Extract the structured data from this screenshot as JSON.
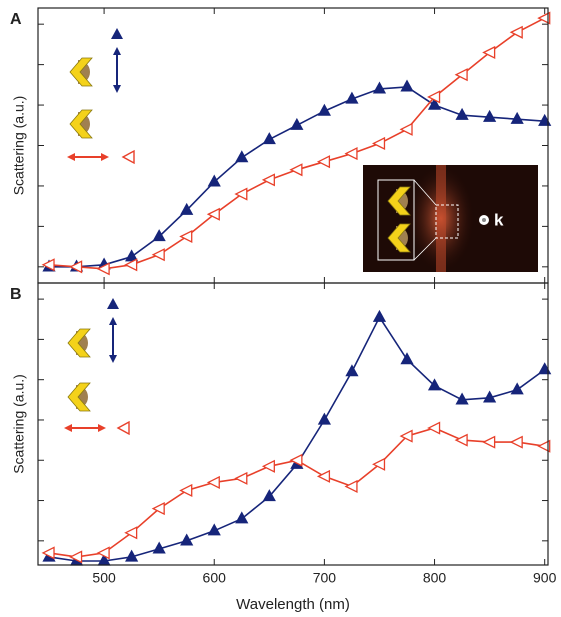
{
  "chart_data": [
    {
      "type": "line",
      "label": "A",
      "ylabel": "Scattering (a.u.)",
      "inset_label": "k",
      "x": [
        450,
        475,
        500,
        525,
        550,
        575,
        600,
        625,
        650,
        675,
        700,
        725,
        750,
        775,
        800,
        825,
        850,
        875,
        900
      ],
      "xlim": [
        440,
        903
      ],
      "xticks": [
        500,
        600,
        700,
        800,
        900
      ],
      "ylim": [
        -0.4,
        6.4
      ],
      "yticks": [
        0,
        1,
        2,
        3,
        4,
        5,
        6
      ],
      "series": [
        {
          "color": "#16257a",
          "marker": "triangle-up",
          "filled": true,
          "values": [
            0.0,
            0.0,
            0.05,
            0.25,
            0.75,
            1.4,
            2.1,
            2.7,
            3.15,
            3.5,
            3.85,
            4.15,
            4.4,
            4.45,
            4.0,
            3.75,
            3.7,
            3.65,
            3.6
          ]
        },
        {
          "color": "#e8402a",
          "marker": "triangle-left",
          "filled": false,
          "values": [
            0.05,
            0.0,
            -0.05,
            0.05,
            0.3,
            0.75,
            1.3,
            1.8,
            2.15,
            2.4,
            2.6,
            2.8,
            3.05,
            3.4,
            4.2,
            4.75,
            5.3,
            5.8,
            6.15
          ]
        }
      ]
    },
    {
      "type": "line",
      "label": "B",
      "ylabel": "Scattering (a.u.)",
      "xlabel": "Wavelength (nm)",
      "x": [
        450,
        475,
        500,
        525,
        550,
        575,
        600,
        625,
        650,
        675,
        700,
        725,
        750,
        775,
        800,
        825,
        850,
        875,
        900
      ],
      "xlim": [
        440,
        903
      ],
      "xticks": [
        500,
        600,
        700,
        800,
        900
      ],
      "ylim": [
        -0.6,
        6.4
      ],
      "yticks": [
        0,
        1,
        2,
        3,
        4,
        5,
        6
      ],
      "series": [
        {
          "color": "#16257a",
          "marker": "triangle-up",
          "filled": true,
          "values": [
            -0.4,
            -0.5,
            -0.5,
            -0.4,
            -0.2,
            0.0,
            0.25,
            0.55,
            1.1,
            1.9,
            3.0,
            4.2,
            5.55,
            4.5,
            3.85,
            3.5,
            3.55,
            3.75,
            4.25
          ]
        },
        {
          "color": "#e8402a",
          "marker": "triangle-left",
          "filled": false,
          "values": [
            -0.3,
            -0.4,
            -0.3,
            0.2,
            0.8,
            1.25,
            1.45,
            1.55,
            1.85,
            2.0,
            1.6,
            1.35,
            1.9,
            2.6,
            2.8,
            2.5,
            2.45,
            2.45,
            2.35
          ]
        }
      ]
    }
  ]
}
